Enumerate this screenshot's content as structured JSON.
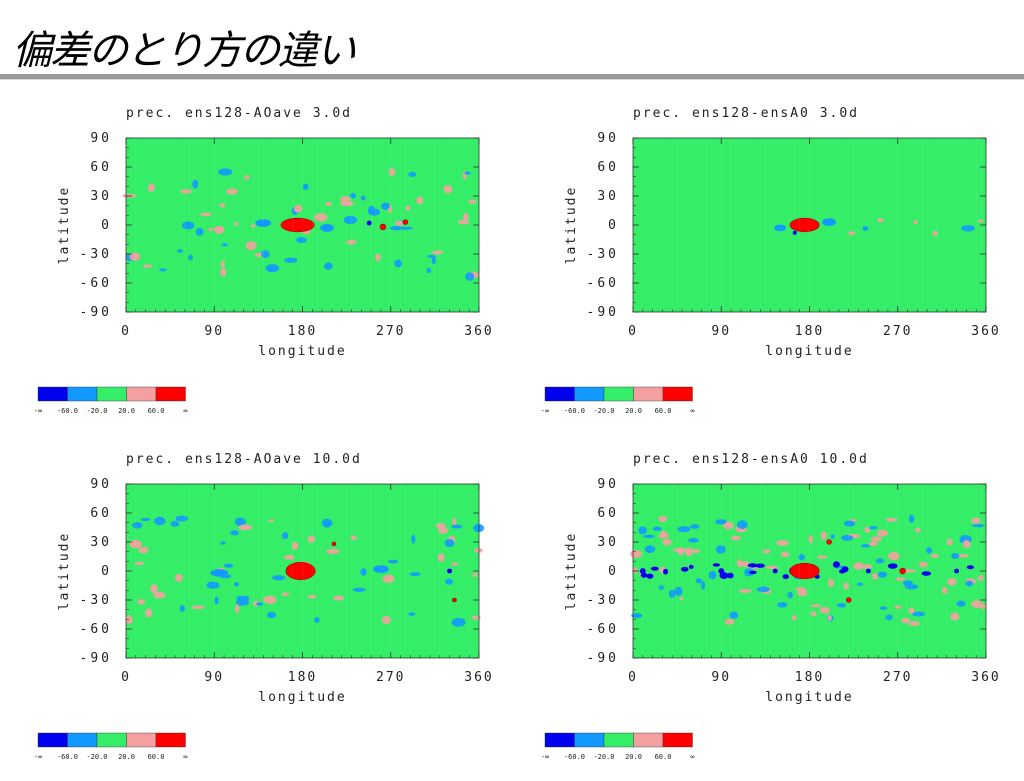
{
  "slide": {
    "title": "偏差のとり方の違い"
  },
  "colors": {
    "background_field": "#33ee66",
    "levels": [
      "#0000ee",
      "#1199ff",
      "#33ee66",
      "#f5a0a0",
      "#ff0000"
    ]
  },
  "colorbar_labels": [
    "-∞",
    "-60.0",
    "-20.0",
    "20.0",
    "60.0",
    "∞"
  ],
  "chart_data": [
    {
      "type": "heatmap",
      "title": "prec.  ens128-AOave  3.0d",
      "xlabel": "longitude",
      "ylabel": "latitude",
      "xlim": [
        0,
        360
      ],
      "ylim": [
        -90,
        90
      ],
      "xticks": [
        "0",
        "90",
        "180",
        "270",
        "360"
      ],
      "yticks": [
        "90",
        "60",
        "30",
        "0",
        "-30",
        "-60",
        "-90"
      ],
      "level_edges": [
        "-∞",
        "-60.0",
        "-20.0",
        "20.0",
        "60.0",
        "∞"
      ],
      "activity": "medium",
      "anomalies": [
        {
          "lon": 175,
          "lat": 0,
          "level": 4,
          "w": 34,
          "h": 14
        },
        {
          "lon": 262,
          "lat": -2,
          "level": 4,
          "w": 6,
          "h": 6
        },
        {
          "lon": 285,
          "lat": 3,
          "level": 4,
          "w": 5,
          "h": 5
        },
        {
          "lon": 248,
          "lat": 2,
          "level": 0,
          "w": 5,
          "h": 5
        },
        {
          "lon": 205,
          "lat": -3,
          "level": 1,
          "w": 14,
          "h": 8
        },
        {
          "lon": 140,
          "lat": 2,
          "level": 1,
          "w": 16,
          "h": 8
        },
        {
          "lon": 95,
          "lat": -5,
          "level": 3,
          "w": 10,
          "h": 8
        }
      ]
    },
    {
      "type": "heatmap",
      "title": "prec.  ens128-ensA0  3.0d",
      "xlabel": "longitude",
      "ylabel": "latitude",
      "xlim": [
        0,
        360
      ],
      "ylim": [
        -90,
        90
      ],
      "xticks": [
        "0",
        "90",
        "180",
        "270",
        "360"
      ],
      "yticks": [
        "90",
        "60",
        "30",
        "0",
        "-30",
        "-60",
        "-90"
      ],
      "level_edges": [
        "-∞",
        "-60.0",
        "-20.0",
        "20.0",
        "60.0",
        "∞"
      ],
      "activity": "low",
      "anomalies": [
        {
          "lon": 175,
          "lat": 0,
          "level": 4,
          "w": 30,
          "h": 14
        },
        {
          "lon": 165,
          "lat": -8,
          "level": 0,
          "w": 4,
          "h": 4
        },
        {
          "lon": 200,
          "lat": 3,
          "level": 1,
          "w": 14,
          "h": 8
        },
        {
          "lon": 150,
          "lat": -3,
          "level": 1,
          "w": 12,
          "h": 7
        },
        {
          "lon": 288,
          "lat": 3,
          "level": 3,
          "w": 4,
          "h": 4
        }
      ]
    },
    {
      "type": "heatmap",
      "title": "prec.  ens128-AOave  10.0d",
      "xlabel": "longitude",
      "ylabel": "latitude",
      "xlim": [
        0,
        360
      ],
      "ylim": [
        -90,
        90
      ],
      "xticks": [
        "0",
        "90",
        "180",
        "270",
        "360"
      ],
      "yticks": [
        "90",
        "60",
        "30",
        "0",
        "-30",
        "-60",
        "-90"
      ],
      "level_edges": [
        "-∞",
        "-60.0",
        "-20.0",
        "20.0",
        "60.0",
        "∞"
      ],
      "activity": "medium",
      "anomalies": [
        {
          "lon": 178,
          "lat": 0,
          "level": 4,
          "w": 30,
          "h": 18
        },
        {
          "lon": 212,
          "lat": 28,
          "level": 4,
          "w": 4,
          "h": 4
        },
        {
          "lon": 335,
          "lat": -30,
          "level": 4,
          "w": 4,
          "h": 4
        },
        {
          "lon": 330,
          "lat": 0,
          "level": 0,
          "w": 5,
          "h": 5
        },
        {
          "lon": 95,
          "lat": -2,
          "level": 1,
          "w": 18,
          "h": 8
        },
        {
          "lon": 260,
          "lat": 2,
          "level": 1,
          "w": 16,
          "h": 8
        }
      ]
    },
    {
      "type": "heatmap",
      "title": "prec.  ens128-ensA0  10.0d",
      "xlabel": "longitude",
      "ylabel": "latitude",
      "xlim": [
        0,
        360
      ],
      "ylim": [
        -90,
        90
      ],
      "xticks": [
        "0",
        "90",
        "180",
        "270",
        "360"
      ],
      "yticks": [
        "90",
        "60",
        "30",
        "0",
        "-30",
        "-60",
        "-90"
      ],
      "level_edges": [
        "-∞",
        "-60.0",
        "-20.0",
        "20.0",
        "60.0",
        "∞"
      ],
      "activity": "high",
      "anomalies": [
        {
          "lon": 175,
          "lat": 0,
          "level": 4,
          "w": 30,
          "h": 16
        },
        {
          "lon": 200,
          "lat": 30,
          "level": 4,
          "w": 5,
          "h": 5
        },
        {
          "lon": 275,
          "lat": 0,
          "level": 4,
          "w": 6,
          "h": 6
        },
        {
          "lon": 220,
          "lat": -30,
          "level": 4,
          "w": 5,
          "h": 5
        },
        {
          "lon": 10,
          "lat": 0,
          "level": 0,
          "w": 6,
          "h": 6
        },
        {
          "lon": 90,
          "lat": 0,
          "level": 0,
          "w": 6,
          "h": 6
        },
        {
          "lon": 145,
          "lat": 0,
          "level": 0,
          "w": 5,
          "h": 5
        },
        {
          "lon": 330,
          "lat": 0,
          "level": 0,
          "w": 5,
          "h": 5
        },
        {
          "lon": 240,
          "lat": 0,
          "level": 0,
          "w": 5,
          "h": 5
        }
      ]
    }
  ]
}
